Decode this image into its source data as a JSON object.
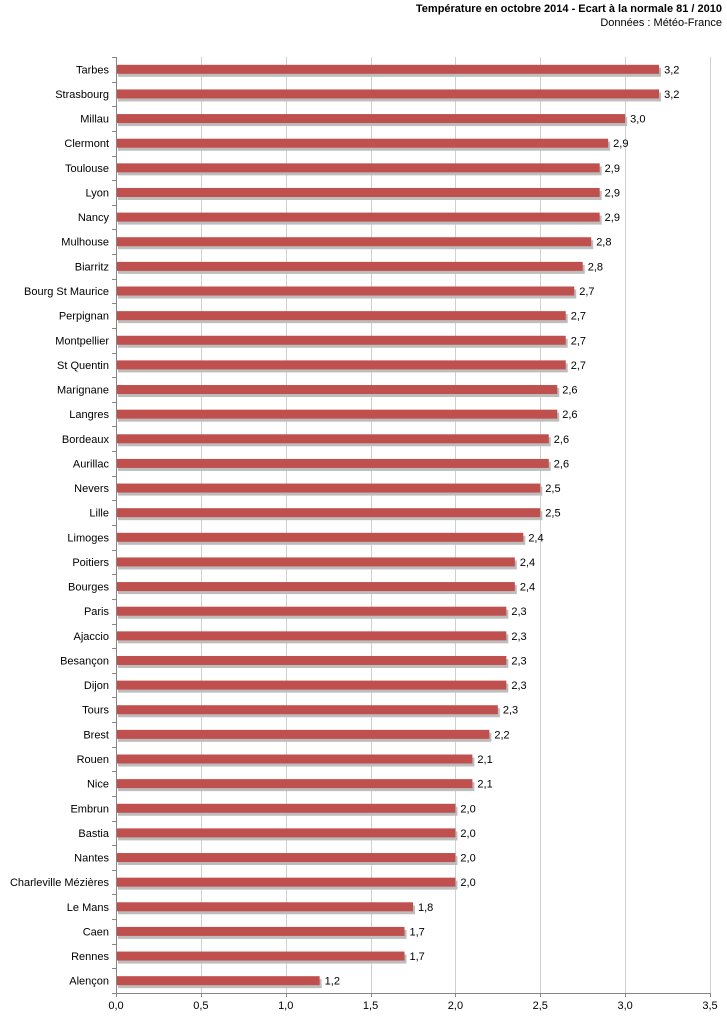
{
  "chart_data": {
    "type": "bar",
    "orientation": "horizontal",
    "title": "Température en octobre 2014 - Ecart à la normale 81 / 2010",
    "subtitle": "Données : Météo-France",
    "categories": [
      "Tarbes",
      "Strasbourg",
      "Millau",
      "Clermont",
      "Toulouse",
      "Lyon",
      "Nancy",
      "Mulhouse",
      "Biarritz",
      "Bourg St Maurice",
      "Perpignan",
      "Montpellier",
      "St Quentin",
      "Marignane",
      "Langres",
      "Bordeaux",
      "Aurillac",
      "Nevers",
      "Lille",
      "Limoges",
      "Poitiers",
      "Bourges",
      "Paris",
      "Ajaccio",
      "Besançon",
      "Dijon",
      "Tours",
      "Brest",
      "Rouen",
      "Nice",
      "Embrun",
      "Bastia",
      "Nantes",
      "Charleville Mézières",
      "Le Mans",
      "Caen",
      "Rennes",
      "Alençon"
    ],
    "values": [
      3.2,
      3.2,
      3.0,
      2.9,
      2.85,
      2.85,
      2.85,
      2.8,
      2.75,
      2.7,
      2.65,
      2.65,
      2.65,
      2.6,
      2.6,
      2.55,
      2.55,
      2.5,
      2.5,
      2.4,
      2.35,
      2.35,
      2.3,
      2.3,
      2.3,
      2.3,
      2.25,
      2.2,
      2.1,
      2.1,
      2.0,
      2.0,
      2.0,
      2.0,
      1.75,
      1.7,
      1.7,
      1.2
    ],
    "value_labels": [
      "3,2",
      "3,2",
      "3,0",
      "2,9",
      "2,9",
      "2,9",
      "2,9",
      "2,8",
      "2,8",
      "2,7",
      "2,7",
      "2,7",
      "2,7",
      "2,6",
      "2,6",
      "2,6",
      "2,6",
      "2,5",
      "2,5",
      "2,4",
      "2,4",
      "2,4",
      "2,3",
      "2,3",
      "2,3",
      "2,3",
      "2,3",
      "2,2",
      "2,1",
      "2,1",
      "2,0",
      "2,0",
      "2,0",
      "2,0",
      "1,8",
      "1,7",
      "1,7",
      "1,2"
    ],
    "xlim": [
      0,
      3.5
    ],
    "xticks": [
      0,
      0.5,
      1.0,
      1.5,
      2.0,
      2.5,
      3.0,
      3.5
    ],
    "xtick_labels": [
      "0,0",
      "0,5",
      "1,0",
      "1,5",
      "2,0",
      "2,5",
      "3,0",
      "3,5"
    ],
    "grid": true,
    "bar_color": "#c0504d",
    "shadow_color": "#bdbdbd",
    "grid_color": "#d0d0d0",
    "axis_color": "#868686"
  }
}
